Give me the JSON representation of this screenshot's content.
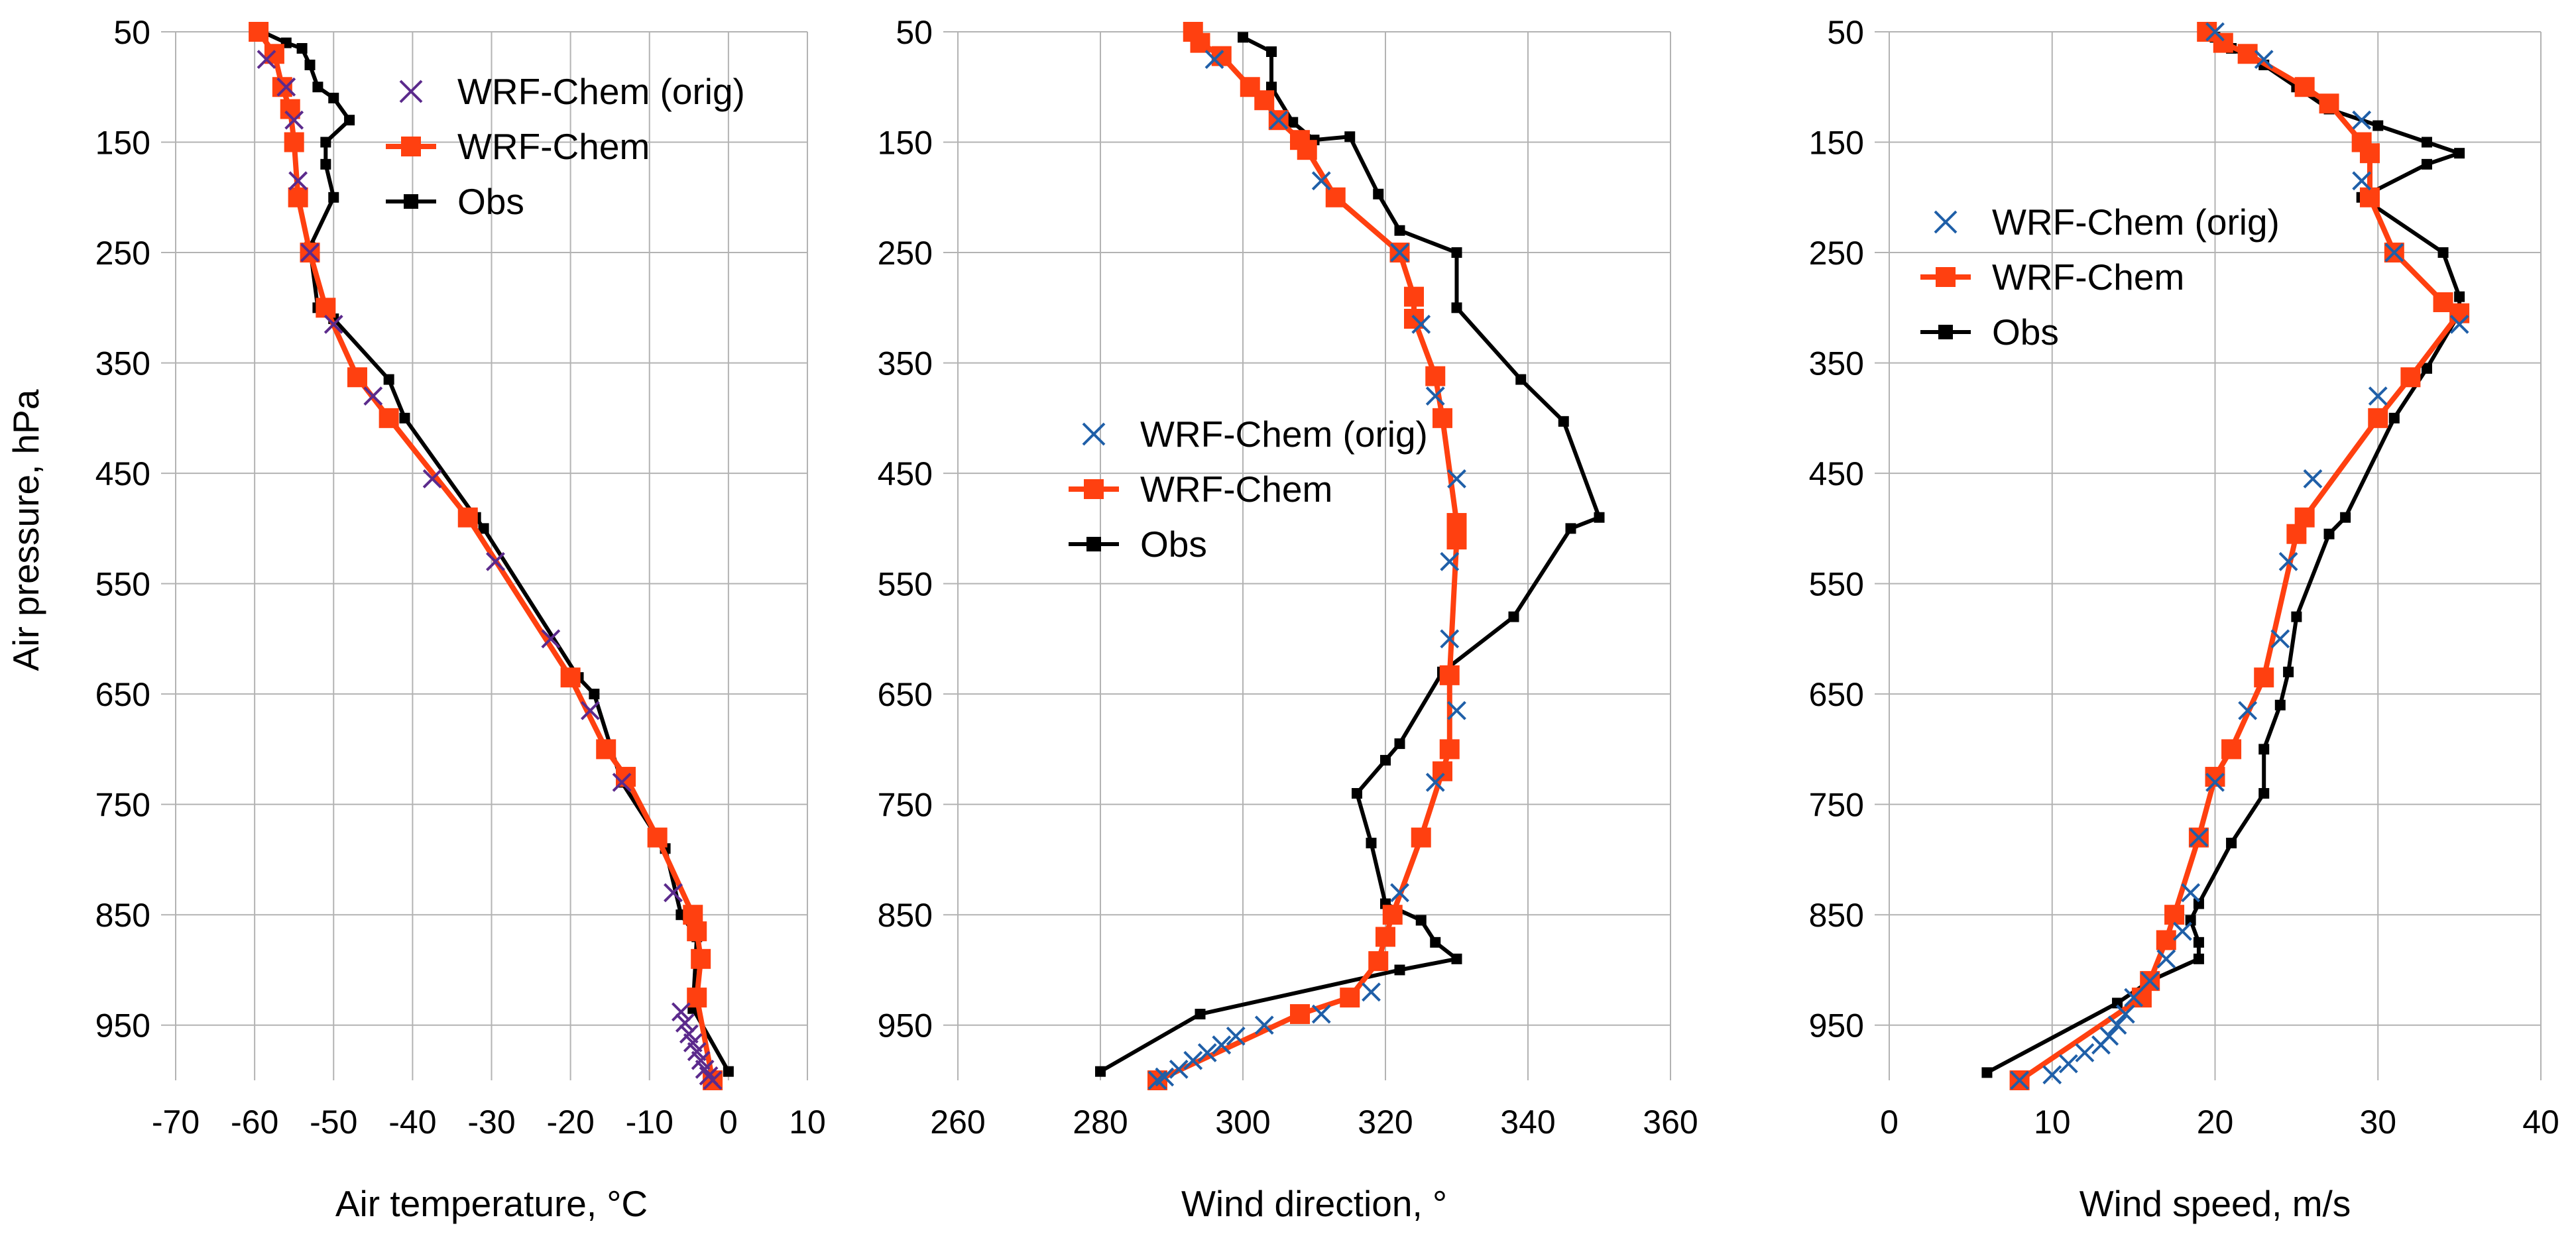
{
  "figure": {
    "y_axis_label": "Air pressure, hPa",
    "series_styles": {
      "wrf_orig": {
        "name": "WRF-Chem (orig)",
        "marker": "x"
      },
      "wrf": {
        "name": "WRF-Chem",
        "marker": "square",
        "color": "#ff4010"
      },
      "obs": {
        "name": "Obs",
        "marker": "square",
        "color": "#000000"
      }
    }
  },
  "chart_data": [
    {
      "type": "line",
      "xlabel": "Air temperature, °C",
      "ylabel": "Air pressure, hPa",
      "xlim": [
        -70,
        10
      ],
      "x_ticks": [
        "-70",
        "-60",
        "-50",
        "-40",
        "-30",
        "-20",
        "-10",
        "0",
        "10"
      ],
      "ylim": [
        1000,
        50
      ],
      "y_ticks": [
        "50",
        "150",
        "250",
        "350",
        "450",
        "550",
        "650",
        "750",
        "850",
        "950"
      ],
      "grid": true,
      "legend": [
        "WRF-Chem (orig)",
        "WRF-Chem",
        "Obs"
      ],
      "legend_position": "top-right",
      "orig_color": "#5b2a8c",
      "series": [
        {
          "name": "WRF-Chem (orig)",
          "key": "orig",
          "points": [
            [
              -58.5,
              75
            ],
            [
              -56,
              100
            ],
            [
              -55,
              130
            ],
            [
              -54.5,
              185
            ],
            [
              -53,
              250
            ],
            [
              -50,
              315
            ],
            [
              -45,
              380
            ],
            [
              -37.5,
              455
            ],
            [
              -29.5,
              530
            ],
            [
              -22.5,
              600
            ],
            [
              -17.5,
              665
            ],
            [
              -13.5,
              730
            ],
            [
              -7,
              830
            ],
            [
              -6,
              938
            ],
            [
              -5.5,
              948
            ],
            [
              -5,
              958
            ],
            [
              -4.5,
              966
            ],
            [
              -4,
              974
            ],
            [
              -3.5,
              982
            ],
            [
              -3,
              990
            ],
            [
              -2.5,
              996
            ],
            [
              -2,
              1000
            ]
          ]
        },
        {
          "name": "WRF-Chem",
          "key": "wrf",
          "points": [
            [
              -59.5,
              50
            ],
            [
              -57.5,
              70
            ],
            [
              -56.5,
              100
            ],
            [
              -55.5,
              120
            ],
            [
              -55,
              150
            ],
            [
              -54.5,
              200
            ],
            [
              -53,
              250
            ],
            [
              -51,
              300
            ],
            [
              -47,
              363
            ],
            [
              -43,
              400
            ],
            [
              -33,
              490
            ],
            [
              -20,
              635
            ],
            [
              -15.5,
              700
            ],
            [
              -13,
              725
            ],
            [
              -9,
              780
            ],
            [
              -4.5,
              850
            ],
            [
              -4,
              865
            ],
            [
              -3.5,
              890
            ],
            [
              -4,
              925
            ],
            [
              -2,
              1000
            ]
          ]
        },
        {
          "name": "Obs",
          "key": "obs",
          "points": [
            [
              -59,
              50
            ],
            [
              -56,
              60
            ],
            [
              -54,
              65
            ],
            [
              -53,
              80
            ],
            [
              -52,
              100
            ],
            [
              -50,
              110
            ],
            [
              -48,
              130
            ],
            [
              -51,
              150
            ],
            [
              -51,
              170
            ],
            [
              -50,
              200
            ],
            [
              -53,
              245
            ],
            [
              -52,
              300
            ],
            [
              -50,
              310
            ],
            [
              -43,
              365
            ],
            [
              -41,
              400
            ],
            [
              -32,
              490
            ],
            [
              -31,
              500
            ],
            [
              -19,
              635
            ],
            [
              -17,
              650
            ],
            [
              -13.5,
              730
            ],
            [
              -9,
              780
            ],
            [
              -8,
              790
            ],
            [
              -6,
              850
            ],
            [
              -4,
              870
            ],
            [
              -4.5,
              935
            ],
            [
              0,
              992
            ]
          ]
        }
      ]
    },
    {
      "type": "line",
      "xlabel": "Wind direction, °",
      "ylabel": "Air pressure, hPa",
      "xlim": [
        260,
        360
      ],
      "x_ticks": [
        "260",
        "280",
        "300",
        "320",
        "340",
        "360"
      ],
      "ylim": [
        1000,
        50
      ],
      "y_ticks": [
        "50",
        "150",
        "250",
        "350",
        "450",
        "550",
        "650",
        "750",
        "850",
        "950"
      ],
      "grid": true,
      "legend": [
        "WRF-Chem (orig)",
        "WRF-Chem",
        "Obs"
      ],
      "legend_position": "center-left",
      "orig_color": "#1f5fa8",
      "series": [
        {
          "name": "WRF-Chem (orig)",
          "key": "orig",
          "points": [
            [
              296,
              75
            ],
            [
              305,
              130
            ],
            [
              311,
              185
            ],
            [
              322,
              250
            ],
            [
              325,
              315
            ],
            [
              327,
              380
            ],
            [
              330,
              455
            ],
            [
              329,
              530
            ],
            [
              329,
              600
            ],
            [
              330,
              665
            ],
            [
              327,
              730
            ],
            [
              322,
              830
            ],
            [
              318,
              920
            ],
            [
              311,
              940
            ],
            [
              303,
              950
            ],
            [
              299,
              960
            ],
            [
              297,
              968
            ],
            [
              295,
              975
            ],
            [
              293,
              982
            ],
            [
              291,
              990
            ],
            [
              289,
              997
            ],
            [
              288,
              1000
            ]
          ]
        },
        {
          "name": "WRF-Chem",
          "key": "wrf",
          "points": [
            [
              293,
              50
            ],
            [
              294,
              60
            ],
            [
              297,
              72
            ],
            [
              301,
              100
            ],
            [
              303,
              112
            ],
            [
              305,
              130
            ],
            [
              308,
              148
            ],
            [
              309,
              157
            ],
            [
              313,
              200
            ],
            [
              322,
              250
            ],
            [
              324,
              290
            ],
            [
              324,
              310
            ],
            [
              327,
              362
            ],
            [
              328,
              400
            ],
            [
              330,
              495
            ],
            [
              330,
              510
            ],
            [
              329,
              633
            ],
            [
              329,
              700
            ],
            [
              328,
              720
            ],
            [
              325,
              780
            ],
            [
              321,
              850
            ],
            [
              320,
              870
            ],
            [
              319,
              892
            ],
            [
              315,
              925
            ],
            [
              308,
              940
            ],
            [
              288,
              1000
            ]
          ]
        },
        {
          "name": "Obs",
          "key": "obs",
          "points": [
            [
              300,
              55
            ],
            [
              304,
              68
            ],
            [
              304,
              100
            ],
            [
              307,
              132
            ],
            [
              310,
              148
            ],
            [
              315,
              145
            ],
            [
              319,
              197
            ],
            [
              322,
              230
            ],
            [
              330,
              250
            ],
            [
              330,
              300
            ],
            [
              339,
              365
            ],
            [
              345,
              403
            ],
            [
              350,
              490
            ],
            [
              346,
              500
            ],
            [
              338,
              580
            ],
            [
              328,
              630
            ],
            [
              322,
              695
            ],
            [
              320,
              710
            ],
            [
              316,
              740
            ],
            [
              318,
              785
            ],
            [
              320,
              840
            ],
            [
              325,
              855
            ],
            [
              327,
              875
            ],
            [
              330,
              890
            ],
            [
              322,
              900
            ],
            [
              294,
              940
            ],
            [
              280,
              992
            ]
          ]
        }
      ]
    },
    {
      "type": "line",
      "xlabel": "Wind speed, m/s",
      "ylabel": "Air pressure, hPa",
      "xlim": [
        0,
        40
      ],
      "x_ticks": [
        "0",
        "10",
        "20",
        "30",
        "40"
      ],
      "ylim": [
        1000,
        50
      ],
      "y_ticks": [
        "50",
        "150",
        "250",
        "350",
        "450",
        "550",
        "650",
        "750",
        "850",
        "950"
      ],
      "grid": true,
      "legend": [
        "WRF-Chem (orig)",
        "WRF-Chem",
        "Obs"
      ],
      "legend_position": "top-left",
      "orig_color": "#1f5fa8",
      "series": [
        {
          "name": "WRF-Chem (orig)",
          "key": "orig",
          "points": [
            [
              20,
              50
            ],
            [
              23,
              75
            ],
            [
              29,
              130
            ],
            [
              29,
              185
            ],
            [
              31,
              250
            ],
            [
              35,
              315
            ],
            [
              30,
              380
            ],
            [
              26,
              455
            ],
            [
              24.5,
              530
            ],
            [
              24,
              600
            ],
            [
              22,
              665
            ],
            [
              20,
              730
            ],
            [
              19,
              780
            ],
            [
              18.5,
              830
            ],
            [
              18,
              865
            ],
            [
              17,
              890
            ],
            [
              16,
              910
            ],
            [
              15,
              925
            ],
            [
              14.5,
              940
            ],
            [
              14,
              950
            ],
            [
              13.5,
              960
            ],
            [
              13,
              968
            ],
            [
              12,
              975
            ],
            [
              11,
              985
            ],
            [
              10,
              995
            ],
            [
              8,
              1000
            ]
          ]
        },
        {
          "name": "WRF-Chem",
          "key": "wrf",
          "points": [
            [
              19.5,
              50
            ],
            [
              20.5,
              60
            ],
            [
              22,
              70
            ],
            [
              25.5,
              100
            ],
            [
              27,
              115
            ],
            [
              29,
              150
            ],
            [
              29.5,
              160
            ],
            [
              29.5,
              200
            ],
            [
              31,
              250
            ],
            [
              34,
              295
            ],
            [
              35,
              305
            ],
            [
              32,
              363
            ],
            [
              30,
              400
            ],
            [
              25.5,
              490
            ],
            [
              25,
              505
            ],
            [
              23,
              635
            ],
            [
              21,
              700
            ],
            [
              20,
              725
            ],
            [
              19,
              780
            ],
            [
              17.5,
              850
            ],
            [
              17,
              873
            ],
            [
              16,
              910
            ],
            [
              15.5,
              925
            ],
            [
              8,
              1000
            ]
          ]
        },
        {
          "name": "Obs",
          "key": "obs",
          "points": [
            [
              19.5,
              50
            ],
            [
              20,
              55
            ],
            [
              21,
              65
            ],
            [
              23,
              80
            ],
            [
              25,
              100
            ],
            [
              27,
              120
            ],
            [
              30,
              135
            ],
            [
              33,
              150
            ],
            [
              35,
              160
            ],
            [
              33,
              170
            ],
            [
              29,
              200
            ],
            [
              34,
              250
            ],
            [
              35,
              290
            ],
            [
              35,
              305
            ],
            [
              33,
              355
            ],
            [
              31,
              400
            ],
            [
              28,
              490
            ],
            [
              27,
              505
            ],
            [
              25,
              580
            ],
            [
              24.5,
              630
            ],
            [
              24,
              660
            ],
            [
              23,
              700
            ],
            [
              23,
              740
            ],
            [
              21,
              785
            ],
            [
              19,
              840
            ],
            [
              18.5,
              855
            ],
            [
              19,
              875
            ],
            [
              19,
              890
            ],
            [
              16,
              910
            ],
            [
              14,
              930
            ],
            [
              6,
              993
            ]
          ]
        }
      ]
    }
  ]
}
